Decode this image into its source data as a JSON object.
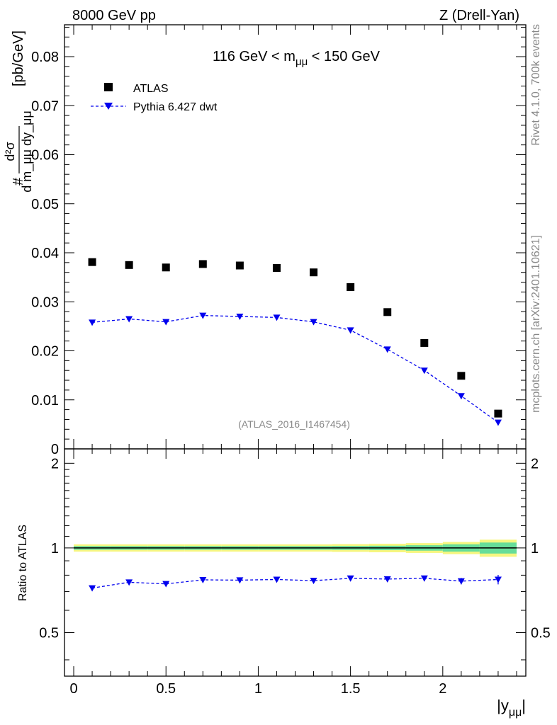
{
  "header": {
    "left": "8000 GeV pp",
    "right": "Z (Drell-Yan)"
  },
  "side_labels": {
    "rivet": "Rivet 4.1.0,  700k events",
    "mcplots": "mcplots.cern.ch [arXiv:2401.10621]"
  },
  "chart_data": {
    "type": "scatter",
    "title": "116 GeV < m_μμ < 150 GeV",
    "title_main": "116 GeV < m",
    "title_sub": "μμ",
    "title_tail": " < 150 GeV",
    "analysis_id": "(ATLAS_2016_I1467454)",
    "xlabel": "|y_μμ|",
    "xlabel_main": "|y",
    "xlabel_sub": "μμ",
    "xlabel_tail": "|",
    "ylabel_unit": "[pb/GeV]",
    "ylabel_num": "d²σ",
    "ylabel_den": "d m_μμ dy_μμ",
    "xlim": [
      -0.05,
      2.45
    ],
    "ylim": [
      0,
      0.0865
    ],
    "x_ticks": [
      0,
      0.5,
      1,
      1.5,
      2
    ],
    "x_tick_labels": [
      "0",
      "0.5",
      "1",
      "1.5",
      "2"
    ],
    "y_ticks": [
      0,
      0.01,
      0.02,
      0.03,
      0.04,
      0.05,
      0.06,
      0.07,
      0.08
    ],
    "y_tick_labels": [
      "0",
      "0.01",
      "0.02",
      "0.03",
      "0.04",
      "0.05",
      "0.06",
      "0.07",
      "0.08"
    ],
    "x": [
      0.1,
      0.3,
      0.5,
      0.7,
      0.9,
      1.1,
      1.3,
      1.5,
      1.7,
      1.9,
      2.1,
      2.3
    ],
    "series": [
      {
        "name": "ATLAS",
        "marker": "square",
        "color": "#000000",
        "values": [
          0.0381,
          0.0375,
          0.037,
          0.0377,
          0.0374,
          0.0369,
          0.036,
          0.033,
          0.0279,
          0.0216,
          0.0149,
          0.0072
        ]
      },
      {
        "name": "Pythia 6.427 dwt",
        "marker": "triangle-down",
        "line": "dashed",
        "color": "#0000ee",
        "values": [
          0.0258,
          0.0265,
          0.0259,
          0.0272,
          0.027,
          0.0268,
          0.0259,
          0.0242,
          0.0203,
          0.016,
          0.0108,
          0.0054
        ]
      }
    ],
    "ratio": {
      "ylabel": "Ratio to ATLAS",
      "ylim": [
        0.35,
        2.25
      ],
      "y_ticks": [
        0.5,
        1,
        2
      ],
      "y_tick_labels": [
        "0.5",
        "1",
        "2"
      ],
      "reference": 1.0,
      "band_edges": [
        0,
        0.2,
        0.4,
        0.6,
        0.8,
        1.0,
        1.2,
        1.4,
        1.6,
        1.8,
        2.0,
        2.2,
        2.4
      ],
      "band_stat": [
        0.015,
        0.015,
        0.015,
        0.015,
        0.015,
        0.015,
        0.015,
        0.016,
        0.018,
        0.022,
        0.03,
        0.045
      ],
      "band_total": [
        0.03,
        0.03,
        0.03,
        0.03,
        0.03,
        0.03,
        0.03,
        0.032,
        0.035,
        0.04,
        0.05,
        0.07
      ],
      "stat_color": "#66dd99",
      "total_color": "#f6f680",
      "values": [
        0.72,
        0.755,
        0.745,
        0.77,
        0.768,
        0.772,
        0.765,
        0.78,
        0.775,
        0.78,
        0.762,
        0.772
      ],
      "errors": [
        0.01,
        0.01,
        0.01,
        0.01,
        0.01,
        0.01,
        0.01,
        0.01,
        0.01,
        0.012,
        0.02,
        0.03
      ]
    }
  }
}
